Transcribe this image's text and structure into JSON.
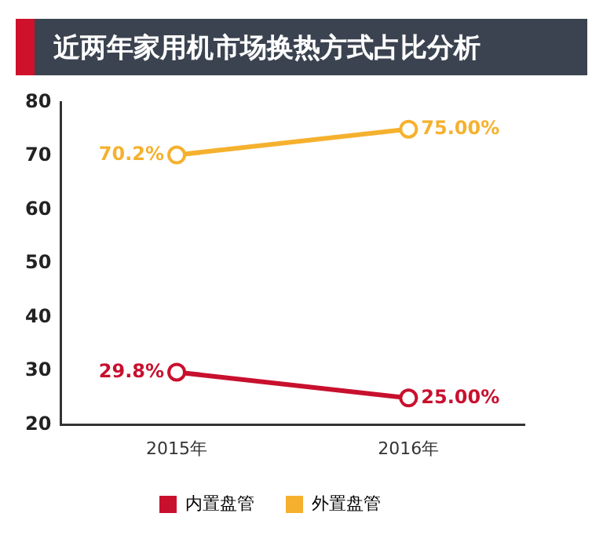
{
  "chart_data": {
    "type": "line",
    "title": "近两年家用机市场换热方式占比分析",
    "categories": [
      "2015年",
      "2016年"
    ],
    "series": [
      {
        "name": "内置盘管",
        "color": "#c8102e",
        "values": [
          29.8,
          25.0
        ],
        "value_labels": [
          "29.8%",
          "25.00%"
        ]
      },
      {
        "name": "外置盘管",
        "color": "#f5b12e",
        "values": [
          70.2,
          75.0
        ],
        "value_labels": [
          "70.2%",
          "75.00%"
        ]
      }
    ],
    "ylim": [
      20,
      80
    ],
    "yticks": [
      20,
      30,
      40,
      50,
      60,
      70,
      80
    ],
    "legend": "bottom",
    "marker": "circle",
    "line_style": "solid"
  }
}
